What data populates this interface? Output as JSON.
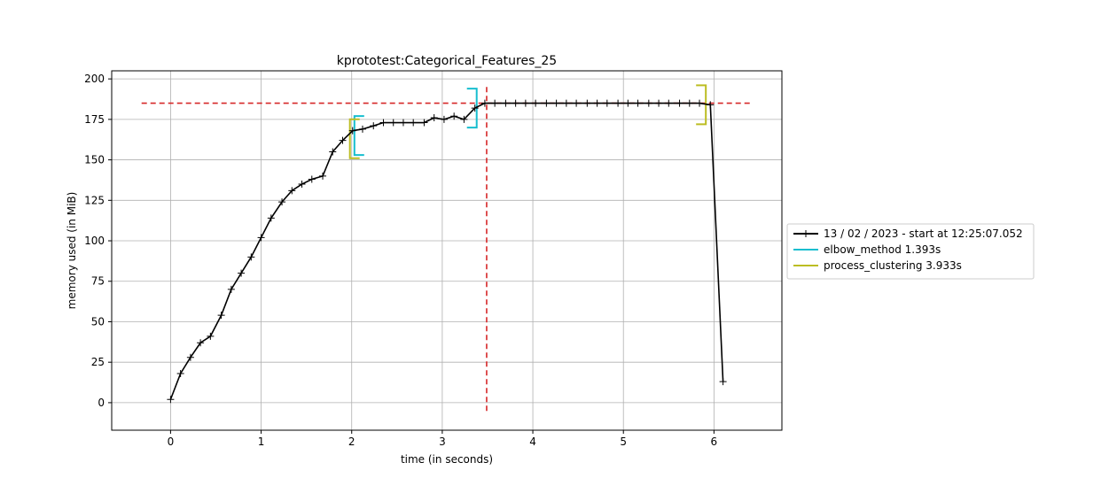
{
  "chart_data": {
    "type": "line",
    "title": "kprototest:Categorical_Features_25",
    "xlabel": "time (in seconds)",
    "ylabel": "memory used (in MiB)",
    "xlim": [
      -0.65,
      6.75
    ],
    "ylim": [
      -17,
      205
    ],
    "xticks": [
      0,
      1,
      2,
      3,
      4,
      5,
      6
    ],
    "yticks": [
      0,
      25,
      50,
      75,
      100,
      125,
      150,
      175,
      200
    ],
    "grid": true,
    "legend_position": "outside-right",
    "series": [
      {
        "name": "13 / 02 / 2023 - start at 12:25:07.052",
        "color": "#000000",
        "marker": "plus",
        "x": [
          0.0,
          0.11,
          0.22,
          0.33,
          0.44,
          0.56,
          0.67,
          0.78,
          0.89,
          1.0,
          1.11,
          1.23,
          1.34,
          1.45,
          1.56,
          1.68,
          1.79,
          1.9,
          2.01,
          2.12,
          2.24,
          2.35,
          2.46,
          2.57,
          2.68,
          2.8,
          2.91,
          3.02,
          3.13,
          3.24,
          3.36,
          3.47,
          3.58,
          3.7,
          3.81,
          3.92,
          4.03,
          4.15,
          4.26,
          4.37,
          4.48,
          4.6,
          4.71,
          4.82,
          4.94,
          5.05,
          5.16,
          5.28,
          5.39,
          5.5,
          5.62,
          5.73,
          5.84,
          5.96,
          6.1
        ],
        "y": [
          2,
          18,
          28,
          37,
          41,
          54,
          70,
          80,
          90,
          102,
          114,
          124,
          131,
          135,
          138,
          140,
          155,
          162,
          168,
          169,
          171,
          173,
          173,
          173,
          173,
          173,
          176,
          175,
          177,
          175,
          182,
          185,
          185,
          185,
          185,
          185,
          185,
          185,
          185,
          185,
          185,
          185,
          185,
          185,
          185,
          185,
          185,
          185,
          185,
          185,
          185,
          185,
          185,
          184,
          13
        ]
      }
    ],
    "brackets": [
      {
        "name": "elbow_method 1.393s",
        "color": "#17becf",
        "start": 2.03,
        "start_y": 165,
        "end": 3.38,
        "end_y": 182
      },
      {
        "name": "process_clustering 3.933s",
        "color": "#bcbd22",
        "start": 1.98,
        "start_y": 163,
        "end": 5.91,
        "end_y": 184
      }
    ],
    "reference_lines": [
      {
        "orientation": "horizontal",
        "value": 185,
        "color": "#d62728",
        "from": -0.32,
        "to": 6.43
      },
      {
        "orientation": "vertical",
        "value": 3.49,
        "color": "#d62728",
        "from": -7,
        "to": 195
      }
    ]
  }
}
